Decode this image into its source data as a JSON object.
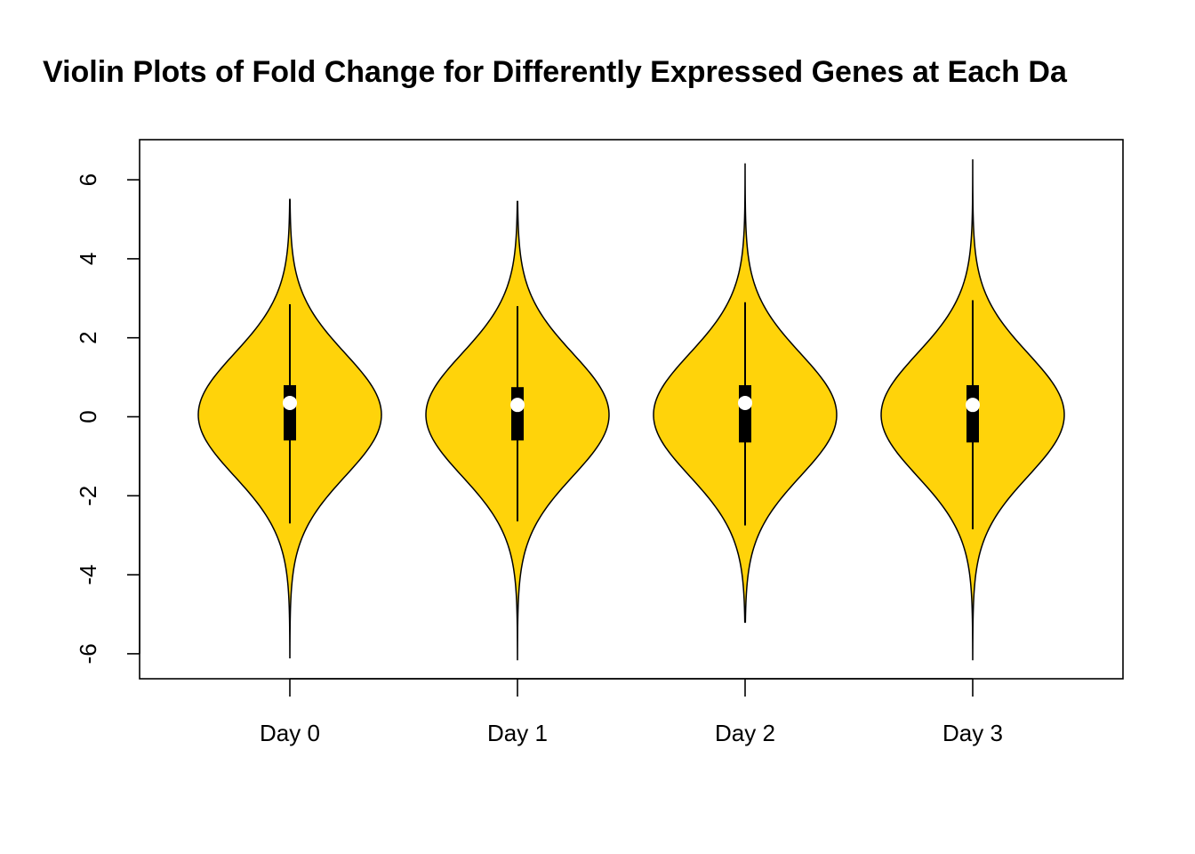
{
  "chart_data": {
    "type": "violin",
    "title": "Violin Plots of Fold Change for Differently Expressed Genes at Each Da",
    "xlabel": "",
    "ylabel": "",
    "categories": [
      "Day 0",
      "Day 1",
      "Day 2",
      "Day 3"
    ],
    "y_ticks": [
      "-6",
      "-4",
      "-2",
      "0",
      "2",
      "4",
      "6"
    ],
    "ylim": [
      -6.6,
      7.0
    ],
    "grid": false,
    "fill_color": "#FFD30A",
    "box_color": "#000000",
    "median_color": "#FFFFFF",
    "violins": [
      {
        "name": "Day 0",
        "min": -6.1,
        "max": 5.5,
        "whisker_low": -2.7,
        "whisker_high": 2.85,
        "q1": -0.6,
        "q3": 0.8,
        "median": 0.35
      },
      {
        "name": "Day 1",
        "min": -6.15,
        "max": 5.45,
        "whisker_low": -2.65,
        "whisker_high": 2.8,
        "q1": -0.6,
        "q3": 0.75,
        "median": 0.3
      },
      {
        "name": "Day 2",
        "min": -5.2,
        "max": 6.4,
        "whisker_low": -2.75,
        "whisker_high": 2.9,
        "q1": -0.65,
        "q3": 0.8,
        "median": 0.35
      },
      {
        "name": "Day 3",
        "min": -6.15,
        "max": 6.5,
        "whisker_low": -2.85,
        "whisker_high": 2.95,
        "q1": -0.65,
        "q3": 0.8,
        "median": 0.3
      }
    ]
  }
}
